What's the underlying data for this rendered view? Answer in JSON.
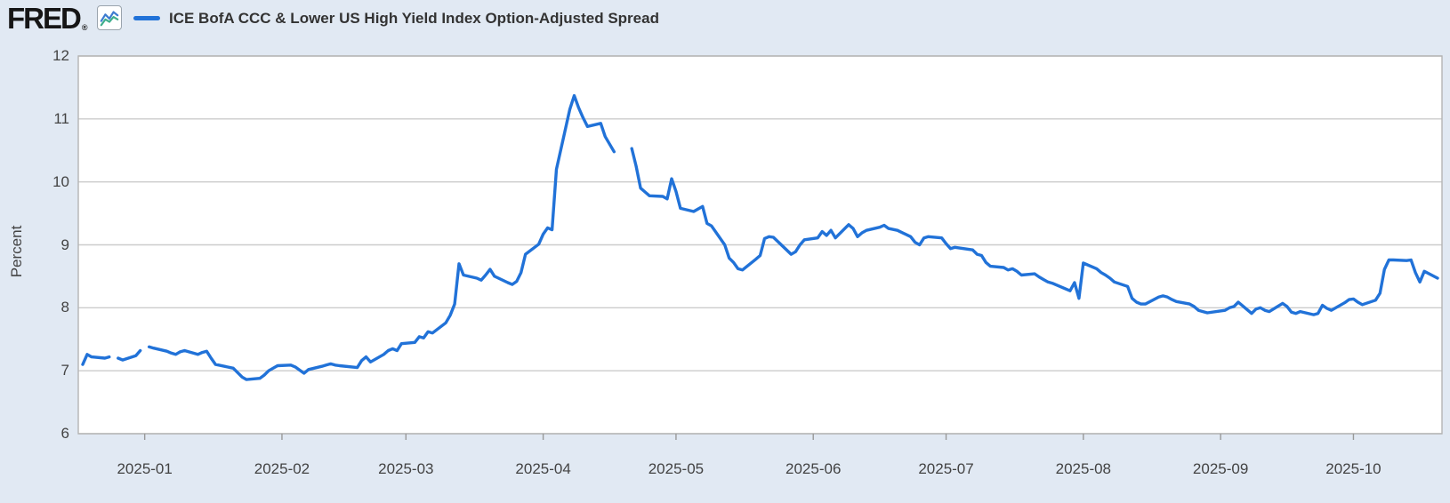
{
  "header": {
    "logo_text": "FRED",
    "logo_registered": "®",
    "icon": "fred-graph-icon"
  },
  "colors": {
    "background": "#e1e9f3",
    "plot_background": "#ffffff",
    "grid": "#cccccc",
    "frame": "#b4b4b4",
    "tick": "#999999",
    "label": "#434343",
    "title": "#333333",
    "line": "#2172d8",
    "icon_blue": "#3d7cd0",
    "icon_green": "#3fae8c"
  },
  "chart_data": {
    "type": "line",
    "title": "ICE BofA CCC & Lower US High Yield Index Option-Adjusted Spread",
    "xlabel": "",
    "ylabel": "Percent",
    "ylim": [
      6,
      12
    ],
    "grid": "horizontal",
    "legend_position": "top-left",
    "x_domain": [
      "2024-12-17",
      "2025-10-21"
    ],
    "y_ticks": [
      12,
      11,
      10,
      9,
      8,
      7,
      6
    ],
    "x_ticks": [
      {
        "date": "2025-01-01",
        "label": "2025-01"
      },
      {
        "date": "2025-02-01",
        "label": "2025-02"
      },
      {
        "date": "2025-03-01",
        "label": "2025-03"
      },
      {
        "date": "2025-04-01",
        "label": "2025-04"
      },
      {
        "date": "2025-05-01",
        "label": "2025-05"
      },
      {
        "date": "2025-06-01",
        "label": "2025-06"
      },
      {
        "date": "2025-07-01",
        "label": "2025-07"
      },
      {
        "date": "2025-08-01",
        "label": "2025-08"
      },
      {
        "date": "2025-09-01",
        "label": "2025-09"
      },
      {
        "date": "2025-10-01",
        "label": "2025-10"
      }
    ],
    "series": [
      {
        "name": "ICE BofA CCC & Lower US High Yield Index Option-Adjusted Spread",
        "color": "#2172d8",
        "points": [
          [
            "2024-12-18",
            7.1
          ],
          [
            "2024-12-19",
            7.26
          ],
          [
            "2024-12-20",
            7.22
          ],
          [
            "2024-12-23",
            7.2
          ],
          [
            "2024-12-24",
            7.22
          ],
          [
            "2024-12-25",
            null
          ],
          [
            "2024-12-26",
            7.2
          ],
          [
            "2024-12-27",
            7.17
          ],
          [
            "2024-12-30",
            7.24
          ],
          [
            "2024-12-31",
            7.32
          ],
          [
            "2025-01-01",
            null
          ],
          [
            "2025-01-02",
            7.38
          ],
          [
            "2025-01-03",
            7.36
          ],
          [
            "2025-01-06",
            7.31
          ],
          [
            "2025-01-07",
            7.28
          ],
          [
            "2025-01-08",
            7.26
          ],
          [
            "2025-01-09",
            7.3
          ],
          [
            "2025-01-10",
            7.32
          ],
          [
            "2025-01-13",
            7.26
          ],
          [
            "2025-01-14",
            7.29
          ],
          [
            "2025-01-15",
            7.31
          ],
          [
            "2025-01-16",
            7.2
          ],
          [
            "2025-01-17",
            7.1
          ],
          [
            "2025-01-21",
            7.04
          ],
          [
            "2025-01-22",
            6.97
          ],
          [
            "2025-01-23",
            6.9
          ],
          [
            "2025-01-24",
            6.86
          ],
          [
            "2025-01-27",
            6.88
          ],
          [
            "2025-01-28",
            6.93
          ],
          [
            "2025-01-29",
            7.0
          ],
          [
            "2025-01-30",
            7.04
          ],
          [
            "2025-01-31",
            7.08
          ],
          [
            "2025-02-03",
            7.09
          ],
          [
            "2025-02-04",
            7.06
          ],
          [
            "2025-02-05",
            7.01
          ],
          [
            "2025-02-06",
            6.96
          ],
          [
            "2025-02-07",
            7.02
          ],
          [
            "2025-02-10",
            7.07
          ],
          [
            "2025-02-11",
            7.09
          ],
          [
            "2025-02-12",
            7.11
          ],
          [
            "2025-02-13",
            7.09
          ],
          [
            "2025-02-14",
            7.08
          ],
          [
            "2025-02-18",
            7.05
          ],
          [
            "2025-02-19",
            7.16
          ],
          [
            "2025-02-20",
            7.22
          ],
          [
            "2025-02-21",
            7.14
          ],
          [
            "2025-02-24",
            7.26
          ],
          [
            "2025-02-25",
            7.32
          ],
          [
            "2025-02-26",
            7.35
          ],
          [
            "2025-02-27",
            7.32
          ],
          [
            "2025-02-28",
            7.43
          ],
          [
            "2025-03-03",
            7.45
          ],
          [
            "2025-03-04",
            7.54
          ],
          [
            "2025-03-05",
            7.52
          ],
          [
            "2025-03-06",
            7.62
          ],
          [
            "2025-03-07",
            7.6
          ],
          [
            "2025-03-10",
            7.76
          ],
          [
            "2025-03-11",
            7.88
          ],
          [
            "2025-03-12",
            8.06
          ],
          [
            "2025-03-13",
            8.7
          ],
          [
            "2025-03-14",
            8.52
          ],
          [
            "2025-03-17",
            8.47
          ],
          [
            "2025-03-18",
            8.44
          ],
          [
            "2025-03-19",
            8.52
          ],
          [
            "2025-03-20",
            8.61
          ],
          [
            "2025-03-21",
            8.5
          ],
          [
            "2025-03-24",
            8.4
          ],
          [
            "2025-03-25",
            8.37
          ],
          [
            "2025-03-26",
            8.42
          ],
          [
            "2025-03-27",
            8.56
          ],
          [
            "2025-03-28",
            8.85
          ],
          [
            "2025-03-31",
            9.01
          ],
          [
            "2025-04-01",
            9.17
          ],
          [
            "2025-04-02",
            9.27
          ],
          [
            "2025-04-03",
            9.24
          ],
          [
            "2025-04-04",
            10.2
          ],
          [
            "2025-04-07",
            11.15
          ],
          [
            "2025-04-08",
            11.37
          ],
          [
            "2025-04-09",
            11.18
          ],
          [
            "2025-04-10",
            11.02
          ],
          [
            "2025-04-11",
            10.88
          ],
          [
            "2025-04-14",
            10.93
          ],
          [
            "2025-04-15",
            10.72
          ],
          [
            "2025-04-16",
            10.6
          ],
          [
            "2025-04-17",
            10.48
          ],
          [
            "2025-04-18",
            null
          ],
          [
            "2025-04-21",
            10.53
          ],
          [
            "2025-04-22",
            10.25
          ],
          [
            "2025-04-23",
            9.9
          ],
          [
            "2025-04-24",
            9.84
          ],
          [
            "2025-04-25",
            9.78
          ],
          [
            "2025-04-28",
            9.77
          ],
          [
            "2025-04-29",
            9.73
          ],
          [
            "2025-04-30",
            10.05
          ],
          [
            "2025-05-01",
            9.85
          ],
          [
            "2025-05-02",
            9.58
          ],
          [
            "2025-05-05",
            9.53
          ],
          [
            "2025-05-06",
            9.57
          ],
          [
            "2025-05-07",
            9.61
          ],
          [
            "2025-05-08",
            9.34
          ],
          [
            "2025-05-09",
            9.3
          ],
          [
            "2025-05-12",
            9.0
          ],
          [
            "2025-05-13",
            8.79
          ],
          [
            "2025-05-14",
            8.72
          ],
          [
            "2025-05-15",
            8.62
          ],
          [
            "2025-05-16",
            8.6
          ],
          [
            "2025-05-19",
            8.77
          ],
          [
            "2025-05-20",
            8.83
          ],
          [
            "2025-05-21",
            9.1
          ],
          [
            "2025-05-22",
            9.13
          ],
          [
            "2025-05-23",
            9.12
          ],
          [
            "2025-05-27",
            8.85
          ],
          [
            "2025-05-28",
            8.89
          ],
          [
            "2025-05-29",
            9.0
          ],
          [
            "2025-05-30",
            9.08
          ],
          [
            "2025-06-02",
            9.11
          ],
          [
            "2025-06-03",
            9.21
          ],
          [
            "2025-06-04",
            9.15
          ],
          [
            "2025-06-05",
            9.23
          ],
          [
            "2025-06-06",
            9.11
          ],
          [
            "2025-06-09",
            9.32
          ],
          [
            "2025-06-10",
            9.26
          ],
          [
            "2025-06-11",
            9.13
          ],
          [
            "2025-06-12",
            9.19
          ],
          [
            "2025-06-13",
            9.23
          ],
          [
            "2025-06-16",
            9.28
          ],
          [
            "2025-06-17",
            9.31
          ],
          [
            "2025-06-18",
            9.26
          ],
          [
            "2025-06-20",
            9.23
          ],
          [
            "2025-06-23",
            9.13
          ],
          [
            "2025-06-24",
            9.04
          ],
          [
            "2025-06-25",
            9.0
          ],
          [
            "2025-06-26",
            9.11
          ],
          [
            "2025-06-27",
            9.13
          ],
          [
            "2025-06-30",
            9.11
          ],
          [
            "2025-07-01",
            9.02
          ],
          [
            "2025-07-02",
            8.94
          ],
          [
            "2025-07-03",
            8.96
          ],
          [
            "2025-07-07",
            8.92
          ],
          [
            "2025-07-08",
            8.85
          ],
          [
            "2025-07-09",
            8.83
          ],
          [
            "2025-07-10",
            8.72
          ],
          [
            "2025-07-11",
            8.66
          ],
          [
            "2025-07-14",
            8.64
          ],
          [
            "2025-07-15",
            8.6
          ],
          [
            "2025-07-16",
            8.62
          ],
          [
            "2025-07-17",
            8.58
          ],
          [
            "2025-07-18",
            8.52
          ],
          [
            "2025-07-21",
            8.54
          ],
          [
            "2025-07-22",
            8.49
          ],
          [
            "2025-07-23",
            8.45
          ],
          [
            "2025-07-24",
            8.41
          ],
          [
            "2025-07-25",
            8.39
          ],
          [
            "2025-07-28",
            8.3
          ],
          [
            "2025-07-29",
            8.27
          ],
          [
            "2025-07-30",
            8.4
          ],
          [
            "2025-07-31",
            8.15
          ],
          [
            "2025-08-01",
            8.71
          ],
          [
            "2025-08-04",
            8.62
          ],
          [
            "2025-08-05",
            8.56
          ],
          [
            "2025-08-06",
            8.52
          ],
          [
            "2025-08-07",
            8.47
          ],
          [
            "2025-08-08",
            8.41
          ],
          [
            "2025-08-11",
            8.34
          ],
          [
            "2025-08-12",
            8.15
          ],
          [
            "2025-08-13",
            8.09
          ],
          [
            "2025-08-14",
            8.06
          ],
          [
            "2025-08-15",
            8.06
          ],
          [
            "2025-08-18",
            8.17
          ],
          [
            "2025-08-19",
            8.19
          ],
          [
            "2025-08-20",
            8.17
          ],
          [
            "2025-08-21",
            8.13
          ],
          [
            "2025-08-22",
            8.1
          ],
          [
            "2025-08-25",
            8.06
          ],
          [
            "2025-08-26",
            8.02
          ],
          [
            "2025-08-27",
            7.96
          ],
          [
            "2025-08-28",
            7.94
          ],
          [
            "2025-08-29",
            7.92
          ],
          [
            "2025-09-02",
            7.96
          ],
          [
            "2025-09-03",
            8.0
          ],
          [
            "2025-09-04",
            8.02
          ],
          [
            "2025-09-05",
            8.09
          ],
          [
            "2025-09-08",
            7.91
          ],
          [
            "2025-09-09",
            7.98
          ],
          [
            "2025-09-10",
            8.0
          ],
          [
            "2025-09-11",
            7.96
          ],
          [
            "2025-09-12",
            7.94
          ],
          [
            "2025-09-15",
            8.07
          ],
          [
            "2025-09-16",
            8.02
          ],
          [
            "2025-09-17",
            7.93
          ],
          [
            "2025-09-18",
            7.91
          ],
          [
            "2025-09-19",
            7.94
          ],
          [
            "2025-09-22",
            7.89
          ],
          [
            "2025-09-23",
            7.91
          ],
          [
            "2025-09-24",
            8.04
          ],
          [
            "2025-09-25",
            7.99
          ],
          [
            "2025-09-26",
            7.96
          ],
          [
            "2025-09-29",
            8.08
          ],
          [
            "2025-09-30",
            8.13
          ],
          [
            "2025-10-01",
            8.14
          ],
          [
            "2025-10-02",
            8.09
          ],
          [
            "2025-10-03",
            8.05
          ],
          [
            "2025-10-06",
            8.12
          ],
          [
            "2025-10-07",
            8.23
          ],
          [
            "2025-10-08",
            8.61
          ],
          [
            "2025-10-09",
            8.76
          ],
          [
            "2025-10-10",
            8.76
          ],
          [
            "2025-10-13",
            8.75
          ],
          [
            "2025-10-14",
            8.76
          ],
          [
            "2025-10-15",
            8.56
          ],
          [
            "2025-10-16",
            8.41
          ],
          [
            "2025-10-17",
            8.58
          ],
          [
            "2025-10-20",
            8.47
          ]
        ]
      }
    ]
  }
}
